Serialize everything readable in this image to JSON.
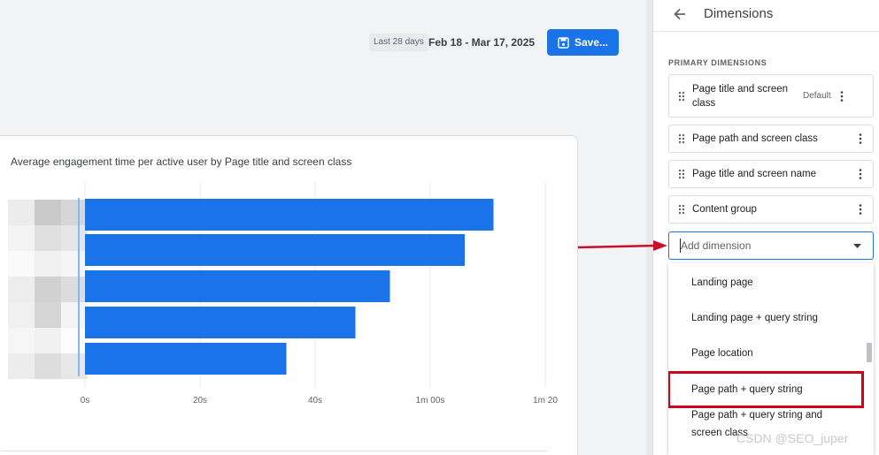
{
  "header": {
    "date_chip": "Last 28 days",
    "date_range": "Feb 18 - Mar 17, 2025",
    "save_label": "Save..."
  },
  "card": {
    "title": "Average engagement time per active user by Page title and screen class"
  },
  "chart_data": {
    "type": "bar",
    "orientation": "horizontal",
    "title": "Average engagement time per active user by Page title and screen class",
    "categories": [
      "",
      "",
      "",
      "",
      ""
    ],
    "values": [
      71,
      66,
      53,
      47,
      35
    ],
    "tick_labels": [
      "0s",
      "20s",
      "40s",
      "1m 00s",
      "1m 20"
    ],
    "xlim": [
      0,
      80
    ],
    "grid": true,
    "color": "#1a73e8"
  },
  "panel": {
    "title": "Dimensions",
    "section_label": "PRIMARY DIMENSIONS",
    "items": [
      {
        "label": "Page title and screen class",
        "badge": "Default"
      },
      {
        "label": "Page path and screen class",
        "badge": ""
      },
      {
        "label": "Page title and screen name",
        "badge": ""
      },
      {
        "label": "Content group",
        "badge": ""
      }
    ],
    "add_placeholder": "Add dimension",
    "options": [
      "Landing page",
      "Landing page + query string",
      "Page location",
      "Page path + query string",
      "Page path + query string and screen class"
    ]
  },
  "watermark": "CSDN @SEO_juper",
  "colors": {
    "accent": "#1a73e8",
    "highlight": "#d0021b"
  }
}
